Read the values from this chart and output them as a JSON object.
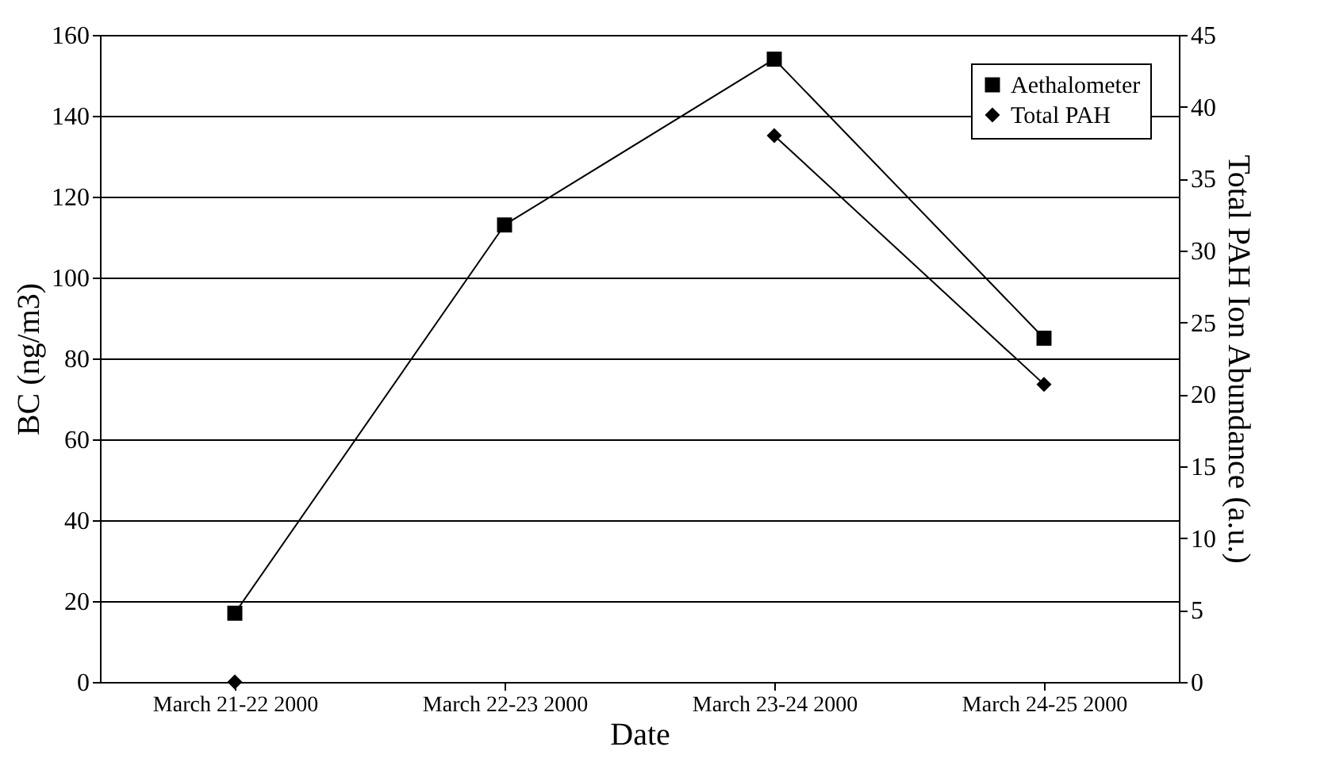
{
  "chart_data": {
    "type": "line",
    "xlabel": "Date",
    "ylabel": "BC (ng/m3)",
    "y2label": "Total PAH Ion Abundance (a.u.)",
    "categories": [
      "March 21-22 2000",
      "March 22-23 2000",
      "March 23-24 2000",
      "March 24-25 2000"
    ],
    "series": [
      {
        "name": "Aethalometer",
        "color": "#000000",
        "marker": "square",
        "values": [
          17,
          113,
          154,
          85
        ]
      },
      {
        "name": "Total PAH",
        "color": "#000000",
        "marker": "diamond",
        "axis": "y2",
        "values": [
          0,
          null,
          38,
          20.7
        ]
      }
    ],
    "ylim": [
      0,
      160
    ],
    "yticks": [
      0,
      20,
      40,
      60,
      80,
      100,
      120,
      140,
      160
    ],
    "y2lim": [
      0,
      45
    ],
    "y2ticks": [
      0,
      5,
      10,
      15,
      20,
      25,
      30,
      35,
      40,
      45
    ],
    "grid": "y",
    "legend": "top right",
    "line_style": "solid"
  }
}
